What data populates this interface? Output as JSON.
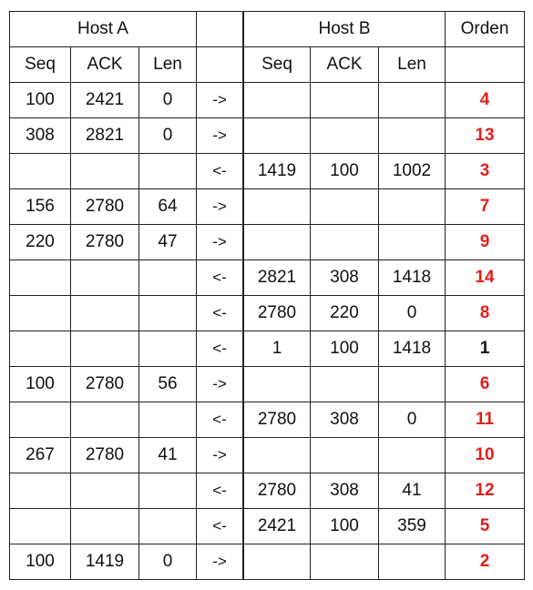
{
  "headers": {
    "host_a": "Host A",
    "host_b": "Host B",
    "orden": "Orden",
    "seq": "Seq",
    "ack": "ACK",
    "len": "Len"
  },
  "accent_color": "#e0201c",
  "rows": [
    {
      "a_seq": "100",
      "a_ack": "2421",
      "a_len": "0",
      "dir": "->",
      "b_seq": "",
      "b_ack": "",
      "b_len": "",
      "orden": "4"
    },
    {
      "a_seq": "308",
      "a_ack": "2821",
      "a_len": "0",
      "dir": "->",
      "b_seq": "",
      "b_ack": "",
      "b_len": "",
      "orden": "13"
    },
    {
      "a_seq": "",
      "a_ack": "",
      "a_len": "",
      "dir": "<-",
      "b_seq": "1419",
      "b_ack": "100",
      "b_len": "1002",
      "orden": "3"
    },
    {
      "a_seq": "156",
      "a_ack": "2780",
      "a_len": "64",
      "dir": "->",
      "b_seq": "",
      "b_ack": "",
      "b_len": "",
      "orden": "7"
    },
    {
      "a_seq": "220",
      "a_ack": "2780",
      "a_len": "47",
      "dir": "->",
      "b_seq": "",
      "b_ack": "",
      "b_len": "",
      "orden": "9"
    },
    {
      "a_seq": "",
      "a_ack": "",
      "a_len": "",
      "dir": "<-",
      "b_seq": "2821",
      "b_ack": "308",
      "b_len": "1418",
      "orden": "14"
    },
    {
      "a_seq": "",
      "a_ack": "",
      "a_len": "",
      "dir": "<-",
      "b_seq": "2780",
      "b_ack": "220",
      "b_len": "0",
      "orden": "8"
    },
    {
      "a_seq": "",
      "a_ack": "",
      "a_len": "",
      "dir": "<-",
      "b_seq": "1",
      "b_ack": "100",
      "b_len": "1418",
      "orden": "1",
      "orden_black": true
    },
    {
      "a_seq": "100",
      "a_ack": "2780",
      "a_len": "56",
      "dir": "->",
      "b_seq": "",
      "b_ack": "",
      "b_len": "",
      "orden": "6"
    },
    {
      "a_seq": "",
      "a_ack": "",
      "a_len": "",
      "dir": "<-",
      "b_seq": "2780",
      "b_ack": "308",
      "b_len": "0",
      "orden": "11"
    },
    {
      "a_seq": "267",
      "a_ack": "2780",
      "a_len": "41",
      "dir": "->",
      "b_seq": "",
      "b_ack": "",
      "b_len": "",
      "orden": "10"
    },
    {
      "a_seq": "",
      "a_ack": "",
      "a_len": "",
      "dir": "<-",
      "b_seq": "2780",
      "b_ack": "308",
      "b_len": "41",
      "orden": "12"
    },
    {
      "a_seq": "",
      "a_ack": "",
      "a_len": "",
      "dir": "<-",
      "b_seq": "2421",
      "b_ack": "100",
      "b_len": "359",
      "orden": "5"
    },
    {
      "a_seq": "100",
      "a_ack": "1419",
      "a_len": "0",
      "dir": "->",
      "b_seq": "",
      "b_ack": "",
      "b_len": "",
      "orden": "2"
    }
  ]
}
